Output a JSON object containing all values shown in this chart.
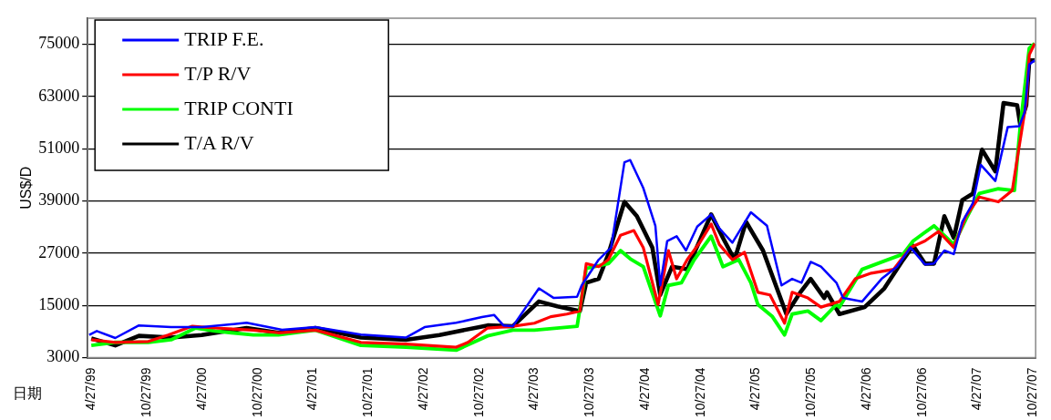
{
  "chart_data": {
    "type": "line",
    "xlabel": "日期",
    "ylabel": "US$/D",
    "xlim": [
      "1999-04-15",
      "2007-11-05"
    ],
    "ylim": [
      3000,
      81000
    ],
    "yticks": [
      3000,
      15000,
      27000,
      39000,
      51000,
      63000,
      75000
    ],
    "xticks": [
      {
        "value": "1999-04-27",
        "label": "4/27/99"
      },
      {
        "value": "1999-10-27",
        "label": "10/27/99"
      },
      {
        "value": "2000-04-27",
        "label": "4/27/00"
      },
      {
        "value": "2000-10-27",
        "label": "10/27/00"
      },
      {
        "value": "2001-04-27",
        "label": "4/27/01"
      },
      {
        "value": "2001-10-27",
        "label": "10/27/01"
      },
      {
        "value": "2002-04-27",
        "label": "4/27/02"
      },
      {
        "value": "2002-10-27",
        "label": "10/27/02"
      },
      {
        "value": "2003-04-27",
        "label": "4/27/03"
      },
      {
        "value": "2003-10-27",
        "label": "10/27/03"
      },
      {
        "value": "2004-04-27",
        "label": "4/27/04"
      },
      {
        "value": "2004-10-27",
        "label": "10/27/04"
      },
      {
        "value": "2005-04-27",
        "label": "4/27/05"
      },
      {
        "value": "2005-10-27",
        "label": "10/27/05"
      },
      {
        "value": "2006-04-27",
        "label": "4/27/06"
      },
      {
        "value": "2006-10-27",
        "label": "10/27/06"
      },
      {
        "value": "2007-04-27",
        "label": "4/27/07"
      },
      {
        "value": "2007-10-27",
        "label": "10/27/07"
      }
    ],
    "grid": "y",
    "legend": "top left",
    "marker": "none",
    "line_style": "solid",
    "series": [
      {
        "name": "TRIP F.E.",
        "color": "#0000ff",
        "x": [
          "1999-04-20",
          "1999-05-15",
          "1999-07-15",
          "1999-10-01",
          "2000-01-15",
          "2000-04-25",
          "2000-09-20",
          "2001-01-15",
          "2001-05-05",
          "2001-10-02",
          "2002-02-27",
          "2002-04-30",
          "2002-08-12",
          "2002-11-05",
          "2002-12-15",
          "2003-01-15",
          "2003-02-15",
          "2003-05-12",
          "2003-06-30",
          "2003-09-15",
          "2003-09-30",
          "2003-11-25",
          "2004-01-05",
          "2004-02-18",
          "2004-03-08",
          "2004-04-20",
          "2004-05-30",
          "2004-06-15",
          "2004-07-08",
          "2004-08-08",
          "2004-09-08",
          "2004-10-15",
          "2004-11-30",
          "2004-12-27",
          "2005-02-08",
          "2005-04-10",
          "2005-06-02",
          "2005-07-20",
          "2005-08-24",
          "2005-09-24",
          "2005-10-24",
          "2005-11-27",
          "2006-01-17",
          "2006-02-08",
          "2006-04-12",
          "2006-06-15",
          "2006-08-05",
          "2006-09-18",
          "2006-11-05",
          "2006-12-05",
          "2007-01-08",
          "2007-02-08",
          "2007-03-08",
          "2007-04-12",
          "2007-05-08",
          "2007-06-25",
          "2007-08-05",
          "2007-09-12",
          "2007-09-30",
          "2007-10-15",
          "2007-11-02"
        ],
        "values": [
          8200,
          9100,
          7500,
          10400,
          10000,
          10000,
          11000,
          9400,
          10000,
          8300,
          7600,
          10000,
          11000,
          12300,
          12800,
          10400,
          10200,
          18900,
          16700,
          17000,
          19600,
          25500,
          28300,
          47900,
          48400,
          42000,
          33300,
          19600,
          29800,
          30900,
          27600,
          33100,
          35900,
          32700,
          29400,
          36400,
          33300,
          19600,
          21100,
          20200,
          25000,
          23900,
          20200,
          16700,
          15900,
          21100,
          23900,
          28300,
          24400,
          24600,
          27600,
          26800,
          34200,
          38500,
          47300,
          43600,
          56000,
          56200,
          59500,
          70400,
          71300
        ]
      },
      {
        "name": "T/P R/V",
        "color": "#ff0000",
        "x": [
          "1999-04-27",
          "1999-07-15",
          "1999-11-01",
          "2000-01-05",
          "2000-03-25",
          "2000-06-08",
          "2000-10-12",
          "2001-01-03",
          "2001-05-05",
          "2001-10-02",
          "2002-02-27",
          "2002-08-12",
          "2002-09-20",
          "2002-11-24",
          "2003-02-15",
          "2003-04-27",
          "2003-06-20",
          "2003-08-12",
          "2003-09-24",
          "2003-10-15",
          "2003-11-25",
          "2003-12-27",
          "2004-02-05",
          "2004-03-20",
          "2004-04-20",
          "2004-06-08",
          "2004-07-12",
          "2004-08-08",
          "2004-09-12",
          "2004-10-27",
          "2004-11-30",
          "2004-12-27",
          "2005-02-08",
          "2005-03-20",
          "2005-05-03",
          "2005-06-12",
          "2005-07-30",
          "2005-08-24",
          "2005-10-15",
          "2005-11-27",
          "2006-01-27",
          "2006-03-20",
          "2006-05-12",
          "2006-07-25",
          "2006-09-18",
          "2006-11-05",
          "2006-12-20",
          "2007-02-08",
          "2007-03-20",
          "2007-05-03",
          "2007-07-05",
          "2007-08-20",
          "2007-09-05",
          "2007-10-05",
          "2007-10-15",
          "2007-11-02"
        ],
        "values": [
          7100,
          6500,
          6700,
          8200,
          10200,
          9800,
          9300,
          8700,
          9300,
          6500,
          6100,
          5400,
          6500,
          9800,
          10200,
          10900,
          12400,
          13000,
          13700,
          24600,
          23900,
          25500,
          31100,
          32200,
          28300,
          15200,
          27600,
          21100,
          25500,
          29800,
          33700,
          29000,
          25500,
          27200,
          18000,
          17400,
          10900,
          18000,
          16700,
          14600,
          15900,
          21100,
          22400,
          23300,
          28300,
          29800,
          32000,
          28300,
          35500,
          39900,
          38800,
          41400,
          48600,
          61700,
          72600,
          75200
        ]
      },
      {
        "name": "TRIP CONTI",
        "color": "#00ff00",
        "x": [
          "1999-04-27",
          "1999-07-15",
          "1999-11-01",
          "2000-01-15",
          "2000-04-05",
          "2000-06-08",
          "2000-10-12",
          "2001-01-03",
          "2001-05-05",
          "2001-10-02",
          "2002-02-27",
          "2002-08-12",
          "2002-11-24",
          "2003-02-15",
          "2003-04-27",
          "2003-09-15",
          "2003-10-15",
          "2003-12-27",
          "2004-02-05",
          "2004-03-08",
          "2004-04-20",
          "2004-06-15",
          "2004-07-12",
          "2004-08-24",
          "2004-10-05",
          "2004-11-30",
          "2005-01-08",
          "2005-03-01",
          "2005-04-10",
          "2005-05-03",
          "2005-06-20",
          "2005-07-30",
          "2005-08-24",
          "2005-10-15",
          "2005-11-27",
          "2006-01-17",
          "2006-01-27",
          "2006-04-12",
          "2006-07-05",
          "2006-08-25",
          "2006-09-27",
          "2006-12-05",
          "2007-02-08",
          "2007-03-20",
          "2007-05-03",
          "2007-07-05",
          "2007-08-27",
          "2007-09-15",
          "2007-10-15",
          "2007-11-02"
        ],
        "values": [
          5800,
          6500,
          6500,
          7100,
          9800,
          9100,
          8200,
          8200,
          9300,
          5800,
          5400,
          4700,
          8000,
          9300,
          9300,
          10200,
          23500,
          24600,
          27600,
          25700,
          23900,
          12600,
          19600,
          20200,
          25500,
          30900,
          23900,
          25500,
          20200,
          15200,
          12400,
          8200,
          13000,
          13700,
          11500,
          15200,
          14600,
          23300,
          25500,
          26800,
          29800,
          33300,
          29000,
          34800,
          40700,
          41800,
          41400,
          56000,
          74100,
          75200
        ]
      },
      {
        "name": "T/A R/V",
        "color": "#000000",
        "x": [
          "1999-04-27",
          "1999-07-15",
          "1999-10-01",
          "2000-01-15",
          "2000-04-25",
          "2000-09-20",
          "2001-01-03",
          "2001-05-05",
          "2001-10-02",
          "2002-02-27",
          "2002-06-18",
          "2002-11-24",
          "2003-02-15",
          "2003-05-12",
          "2003-07-12",
          "2003-09-24",
          "2003-10-15",
          "2003-11-25",
          "2003-12-27",
          "2004-02-18",
          "2004-03-30",
          "2004-05-20",
          "2004-06-15",
          "2004-07-24",
          "2004-09-12",
          "2004-10-27",
          "2004-11-30",
          "2005-01-08",
          "2005-02-15",
          "2005-03-25",
          "2005-05-20",
          "2005-08-05",
          "2005-09-20",
          "2005-10-24",
          "2005-12-08",
          "2005-12-17",
          "2006-01-27",
          "2006-04-20",
          "2006-06-24",
          "2006-08-25",
          "2006-09-27",
          "2006-11-05",
          "2006-12-05",
          "2007-01-08",
          "2007-02-08",
          "2007-03-08",
          "2007-04-12",
          "2007-05-12",
          "2007-06-25",
          "2007-07-22",
          "2007-09-05",
          "2007-09-15",
          "2007-10-05",
          "2007-10-15",
          "2007-11-02"
        ],
        "values": [
          7400,
          5800,
          8000,
          7600,
          8200,
          9800,
          8700,
          9800,
          7600,
          7100,
          8200,
          10400,
          10200,
          15900,
          14800,
          13700,
          20200,
          21100,
          26800,
          38800,
          35500,
          28300,
          17400,
          23900,
          23300,
          30500,
          35900,
          30500,
          25500,
          34200,
          27600,
          13000,
          18000,
          21100,
          16700,
          18000,
          13000,
          14600,
          18900,
          25500,
          28700,
          24600,
          24600,
          35500,
          30500,
          39200,
          40700,
          50800,
          45800,
          61500,
          61000,
          56600,
          61000,
          71300,
          71300
        ]
      }
    ]
  }
}
